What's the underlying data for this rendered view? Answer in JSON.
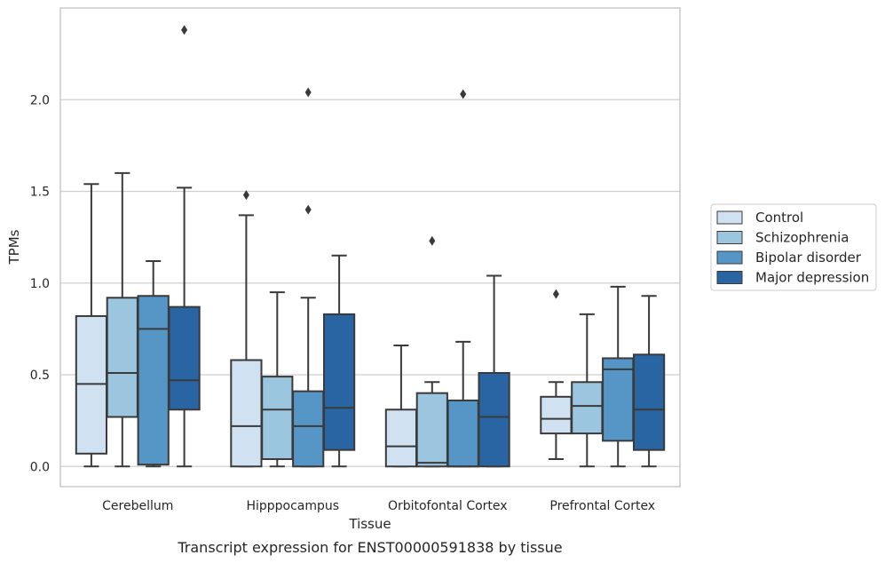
{
  "caption": "Transcript expression for ENST00000591838 by tissue",
  "chart_data": {
    "type": "box",
    "xlabel": "Tissue",
    "ylabel": "TPMs",
    "ylim": [
      -0.11,
      2.5
    ],
    "yticks": [
      0.0,
      0.5,
      1.0,
      1.5,
      2.0
    ],
    "ytick_labels": [
      "0.0",
      "0.5",
      "1.0",
      "1.5",
      "2.0"
    ],
    "grid": "horizontal",
    "legend_position": "right",
    "categories": [
      "Cerebellum",
      "Hipppocampus",
      "Orbitofontal Cortex",
      "Prefrontal Cortex"
    ],
    "series": [
      {
        "name": "Control",
        "color": "#d0e1f1",
        "boxes": [
          {
            "whisker_low": 0.0,
            "q1": 0.07,
            "median": 0.45,
            "q3": 0.82,
            "whisker_high": 1.54,
            "outliers": []
          },
          {
            "whisker_low": 0.0,
            "q1": 0.0,
            "median": 0.22,
            "q3": 0.58,
            "whisker_high": 1.37,
            "outliers": [
              1.48
            ]
          },
          {
            "whisker_low": 0.0,
            "q1": 0.0,
            "median": 0.11,
            "q3": 0.31,
            "whisker_high": 0.66,
            "outliers": []
          },
          {
            "whisker_low": 0.04,
            "q1": 0.18,
            "median": 0.26,
            "q3": 0.38,
            "whisker_high": 0.46,
            "outliers": [
              0.94
            ]
          }
        ]
      },
      {
        "name": "Schizophrenia",
        "color": "#9cc6df",
        "boxes": [
          {
            "whisker_low": 0.0,
            "q1": 0.27,
            "median": 0.51,
            "q3": 0.92,
            "whisker_high": 1.6,
            "outliers": []
          },
          {
            "whisker_low": 0.0,
            "q1": 0.04,
            "median": 0.31,
            "q3": 0.49,
            "whisker_high": 0.95,
            "outliers": []
          },
          {
            "whisker_low": 0.0,
            "q1": 0.0,
            "median": 0.02,
            "q3": 0.4,
            "whisker_high": 0.46,
            "outliers": [
              1.23
            ]
          },
          {
            "whisker_low": 0.0,
            "q1": 0.18,
            "median": 0.33,
            "q3": 0.46,
            "whisker_high": 0.83,
            "outliers": []
          }
        ]
      },
      {
        "name": "Bipolar disorder",
        "color": "#5596c7",
        "boxes": [
          {
            "whisker_low": 0.0,
            "q1": 0.01,
            "median": 0.75,
            "q3": 0.93,
            "whisker_high": 1.12,
            "outliers": []
          },
          {
            "whisker_low": 0.0,
            "q1": 0.0,
            "median": 0.22,
            "q3": 0.41,
            "whisker_high": 0.92,
            "outliers": [
              1.4,
              2.04
            ]
          },
          {
            "whisker_low": 0.0,
            "q1": 0.0,
            "median": 0.0,
            "q3": 0.36,
            "whisker_high": 0.68,
            "outliers": [
              2.03
            ]
          },
          {
            "whisker_low": 0.0,
            "q1": 0.14,
            "median": 0.53,
            "q3": 0.59,
            "whisker_high": 0.98,
            "outliers": []
          }
        ]
      },
      {
        "name": "Major depression",
        "color": "#2a65a3",
        "boxes": [
          {
            "whisker_low": 0.0,
            "q1": 0.31,
            "median": 0.47,
            "q3": 0.87,
            "whisker_high": 1.52,
            "outliers": [
              2.38
            ]
          },
          {
            "whisker_low": 0.0,
            "q1": 0.09,
            "median": 0.32,
            "q3": 0.83,
            "whisker_high": 1.15,
            "outliers": []
          },
          {
            "whisker_low": 0.0,
            "q1": 0.0,
            "median": 0.27,
            "q3": 0.51,
            "whisker_high": 1.04,
            "outliers": []
          },
          {
            "whisker_low": 0.0,
            "q1": 0.09,
            "median": 0.31,
            "q3": 0.61,
            "whisker_high": 0.93,
            "outliers": []
          }
        ]
      }
    ]
  }
}
